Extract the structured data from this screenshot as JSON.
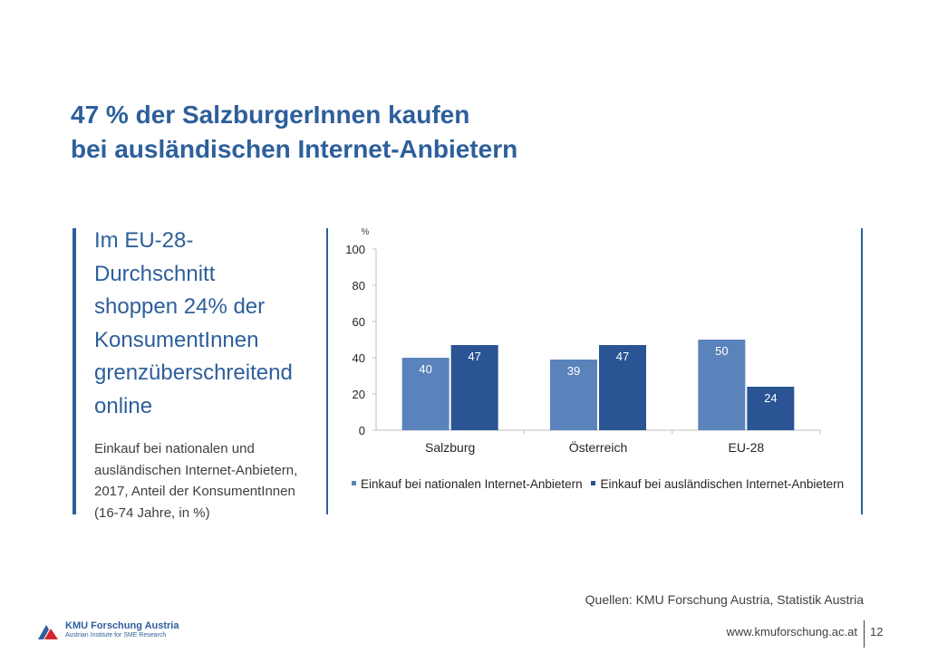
{
  "slide": {
    "title_line1": "47 % der SalzburgerInnen  kaufen",
    "title_line2": "bei ausländischen Internet-Anbietern",
    "headline_lines": [
      "Im EU-28-",
      "Durchschnitt",
      "shoppen 24% der",
      "KonsumentInnen",
      "grenzüberschreitend",
      "online"
    ],
    "subtext_lines": [
      "Einkauf bei nationalen und",
      "ausländischen Internet-Anbietern,",
      "2017, Anteil der KonsumentInnen",
      "(16-74 Jahre, in %)"
    ],
    "source": "Quellen: KMU Forschung Austria, Statistik Austria",
    "footer_url": "www.kmuforschung.ac.at",
    "page_number": "12",
    "logo_name": "KMU Forschung Austria",
    "logo_subtitle": "Austrian Institute for SME Research"
  },
  "colors": {
    "title": "#2d5f9b",
    "series_national": "#5b83bb",
    "series_foreign": "#2a5494",
    "logo_red": "#d6262e"
  },
  "chart_data": {
    "type": "bar",
    "title": "",
    "xlabel": "",
    "ylabel": "%",
    "ylim": [
      0,
      100
    ],
    "yticks": [
      0,
      20,
      40,
      60,
      80,
      100
    ],
    "grid": false,
    "legend_position": "bottom",
    "categories": [
      "Salzburg",
      "Österreich",
      "EU-28"
    ],
    "series": [
      {
        "name": "Einkauf bei nationalen Internet-Anbietern",
        "values": [
          40,
          39,
          50
        ],
        "color": "#5b83bb"
      },
      {
        "name": "Einkauf bei ausländischen Internet-Anbietern",
        "values": [
          47,
          47,
          24
        ],
        "color": "#2a5494"
      }
    ]
  }
}
